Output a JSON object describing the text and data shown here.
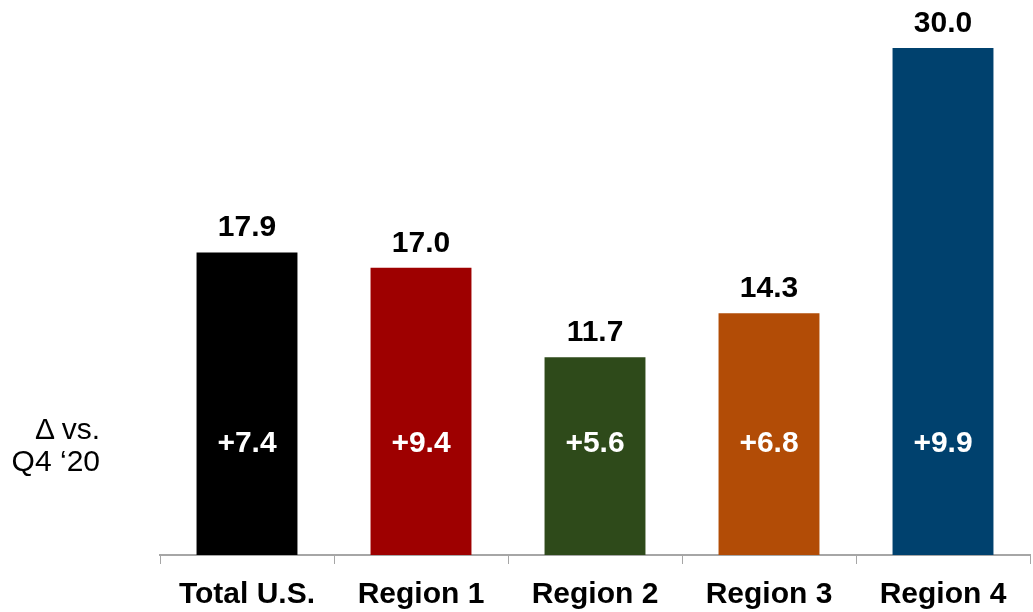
{
  "chart_data": {
    "type": "bar",
    "categories": [
      "Total U.S.",
      "Region 1",
      "Region 2",
      "Region 3",
      "Region 4"
    ],
    "values": [
      17.9,
      17.0,
      11.7,
      14.3,
      30.0
    ],
    "value_labels": [
      "17.9",
      "17.0",
      "11.7",
      "14.3",
      "30.0"
    ],
    "colors": [
      "#000000",
      "#9e0000",
      "#2e4a1a",
      "#b24c06",
      "#00416e"
    ],
    "annotations": [
      "Δ vs. Q4 ‘20",
      "+7.4",
      "+9.4",
      "+5.6",
      "+6.8",
      "+9.9"
    ]
  }
}
